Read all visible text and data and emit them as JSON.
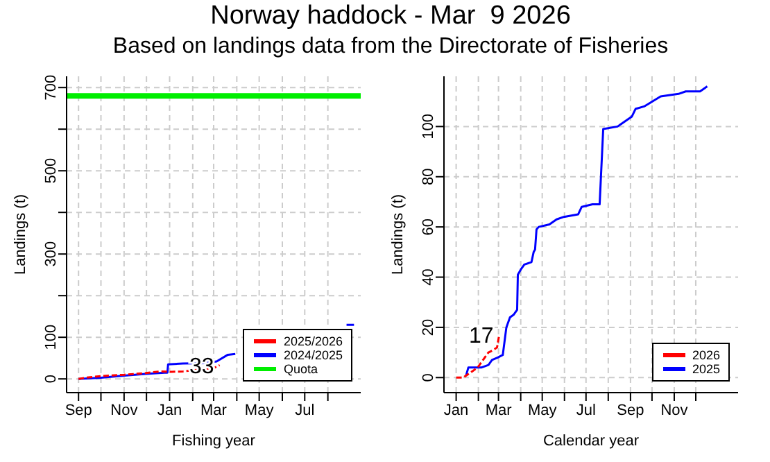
{
  "chart_data": [
    {
      "type": "line",
      "title": "Norway haddock - Mar  9 2026",
      "subtitle": "Based on landings data from the Directorate of Fisheries",
      "xlabel": "Fishing year",
      "ylabel": "Landings (t)",
      "xlim": [
        "2025-08-16",
        "2026-09-14"
      ],
      "ylim": [
        -33,
        727
      ],
      "xticks": [
        {
          "value": "2025-09-01",
          "label": "Sep"
        },
        {
          "value": "2025-10-01",
          "label": null
        },
        {
          "value": "2025-11-01",
          "label": "Nov"
        },
        {
          "value": "2025-12-01",
          "label": null
        },
        {
          "value": "2026-01-01",
          "label": "Jan"
        },
        {
          "value": "2026-02-01",
          "label": null
        },
        {
          "value": "2026-03-01",
          "label": "Mar"
        },
        {
          "value": "2026-04-01",
          "label": null
        },
        {
          "value": "2026-05-01",
          "label": "May"
        },
        {
          "value": "2026-06-01",
          "label": null
        },
        {
          "value": "2026-07-01",
          "label": "Jul"
        },
        {
          "value": "2026-08-01",
          "label": null
        }
      ],
      "yticks": [
        0,
        100,
        {
          "value": 200,
          "label": null
        },
        300,
        {
          "value": 400,
          "label": null
        },
        500,
        {
          "value": 600,
          "label": null
        },
        700
      ],
      "series": [
        {
          "name": "2025/2026",
          "color": "#ff0000",
          "line_style": "dashed",
          "x": [
            "2025-09-01",
            "2025-09-11",
            "2025-09-21",
            "2025-10-11",
            "2025-11-01",
            "2025-11-30",
            "2025-12-20",
            "2026-01-04",
            "2026-01-19",
            "2026-02-08",
            "2026-02-28",
            "2026-03-09"
          ],
          "values": [
            0,
            3,
            5,
            8,
            10,
            14,
            18,
            17,
            18,
            22,
            25,
            33
          ]
        },
        {
          "name": "2024/2025",
          "color": "#0000ff",
          "line_style": "solid",
          "x": [
            "2025-09-01",
            "2025-10-01",
            "2025-11-01",
            "2025-11-30",
            "2025-12-25",
            "2025-12-29",
            "2025-12-30",
            "2026-01-19",
            "2026-02-18",
            "2026-03-05",
            "2026-03-20",
            "2026-03-30",
            "2026-04-09",
            "2026-08-26",
            "2026-09-05"
          ],
          "values": [
            0,
            3,
            8,
            12,
            15,
            15,
            35,
            37,
            38,
            42,
            58,
            60,
            null,
            130,
            130
          ]
        },
        {
          "name": "Quota",
          "color": "#00ee00",
          "line_style": "solid",
          "x": [
            "2025-08-16",
            "2026-09-14"
          ],
          "values": [
            680,
            680
          ]
        }
      ],
      "annotations": [
        {
          "text": "33",
          "x": "2026-03-09",
          "y": 33
        }
      ],
      "grid": true,
      "legend": "bottom right",
      "marker": "none"
    },
    {
      "type": "line",
      "xlabel": "Calendar year",
      "ylabel": "Landings (t)",
      "xlim": [
        "2025-12-15",
        "2027-01-29"
      ],
      "ylim": [
        -6,
        120
      ],
      "xticks": [
        {
          "value": "2026-01-01",
          "label": "Jan"
        },
        {
          "value": "2026-02-01",
          "label": null
        },
        {
          "value": "2026-03-01",
          "label": "Mar"
        },
        {
          "value": "2026-04-01",
          "label": null
        },
        {
          "value": "2026-05-01",
          "label": "May"
        },
        {
          "value": "2026-06-01",
          "label": null
        },
        {
          "value": "2026-07-01",
          "label": "Jul"
        },
        {
          "value": "2026-08-01",
          "label": null
        },
        {
          "value": "2026-09-01",
          "label": "Sep"
        },
        {
          "value": "2026-10-01",
          "label": null
        },
        {
          "value": "2026-11-01",
          "label": "Nov"
        },
        {
          "value": "2026-12-01",
          "label": null
        }
      ],
      "yticks": [
        0,
        20,
        40,
        60,
        80,
        100
      ],
      "series": [
        {
          "name": "2026",
          "color": "#ff0000",
          "line_style": "dashed",
          "x": [
            "2026-01-01",
            "2026-01-11",
            "2026-01-31",
            "2026-02-15",
            "2026-02-22",
            "2026-02-27",
            "2026-03-02"
          ],
          "values": [
            0,
            0,
            4,
            10,
            11,
            12,
            17
          ]
        },
        {
          "name": "2025",
          "color": "#0000ff",
          "line_style": "solid",
          "x": [
            "2026-01-15",
            "2026-01-18",
            "2026-01-26",
            "2026-02-05",
            "2026-02-15",
            "2026-02-20",
            "2026-02-28",
            "2026-03-07",
            "2026-03-12",
            "2026-03-17",
            "2026-03-22",
            "2026-03-27",
            "2026-03-28",
            "2026-04-01",
            "2026-04-06",
            "2026-04-16",
            "2026-04-19",
            "2026-04-21",
            "2026-04-23",
            "2026-04-26",
            "2026-05-11",
            "2026-05-21",
            "2026-05-31",
            "2026-06-20",
            "2026-06-25",
            "2026-07-10",
            "2026-07-20",
            "2026-07-25",
            "2026-08-14",
            "2026-08-19",
            "2026-09-03",
            "2026-09-08",
            "2026-09-20",
            "2026-09-26",
            "2026-10-13",
            "2026-11-07",
            "2026-11-17",
            "2026-12-07",
            "2026-12-17"
          ],
          "values": [
            1,
            4,
            4,
            4,
            5,
            7,
            8,
            9,
            20,
            24,
            25,
            27,
            41,
            43,
            45,
            46,
            50,
            51,
            59,
            60,
            61,
            63,
            64,
            65,
            68,
            69,
            69,
            99,
            100,
            101,
            104,
            107,
            108,
            109,
            112,
            113,
            114,
            114,
            116
          ]
        }
      ],
      "annotations": [
        {
          "text": "17",
          "x": "2026-03-02",
          "y": 17
        }
      ],
      "grid": true,
      "legend": "bottom right",
      "marker": "none"
    }
  ]
}
